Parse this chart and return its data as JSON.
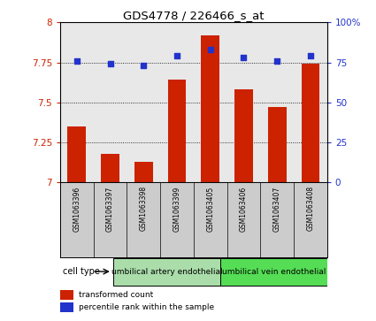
{
  "title": "GDS4778 / 226466_s_at",
  "samples": [
    "GSM1063396",
    "GSM1063397",
    "GSM1063398",
    "GSM1063399",
    "GSM1063405",
    "GSM1063406",
    "GSM1063407",
    "GSM1063408"
  ],
  "red_values": [
    7.35,
    7.18,
    7.13,
    7.64,
    7.92,
    7.58,
    7.47,
    7.74
  ],
  "blue_values": [
    76,
    74,
    73,
    79,
    83,
    78,
    76,
    79
  ],
  "ylim_left": [
    7.0,
    8.0
  ],
  "ylim_right": [
    0,
    100
  ],
  "yticks_left": [
    7.0,
    7.25,
    7.5,
    7.75,
    8.0
  ],
  "yticks_right": [
    0,
    25,
    50,
    75,
    100
  ],
  "ytick_labels_left": [
    "7",
    "7.25",
    "7.5",
    "7.75",
    "8"
  ],
  "ytick_labels_right": [
    "0",
    "25",
    "50",
    "75",
    "100%"
  ],
  "bar_color": "#cc2200",
  "dot_color": "#2233cc",
  "grid_color": "black",
  "cell_type_groups": [
    {
      "label": "umbilical artery endothelial",
      "start": 0,
      "end": 4,
      "color": "#aaddaa"
    },
    {
      "label": "umbilical vein endothelial",
      "start": 4,
      "end": 8,
      "color": "#55dd55"
    }
  ],
  "cell_type_label": "cell type",
  "legend_red": "transformed count",
  "legend_blue": "percentile rank within the sample",
  "bar_width": 0.55,
  "background_color": "white",
  "plot_bg": "#e8e8e8",
  "sample_bg": "#cccccc"
}
